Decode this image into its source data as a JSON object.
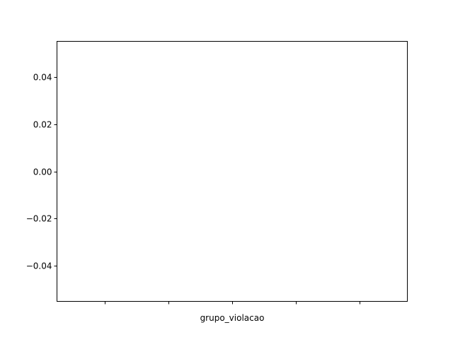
{
  "chart_data": {
    "type": "bar",
    "title": "",
    "xlabel": "grupo_violacao",
    "ylabel": "",
    "categories": [
      "",
      "",
      "",
      "",
      ""
    ],
    "series": [],
    "ylim": [
      -0.055,
      0.055
    ],
    "yticks": [
      -0.04,
      -0.02,
      0.0,
      0.02,
      0.04
    ],
    "ytick_labels": [
      "−0.04",
      "−0.02",
      "0.00",
      "0.02",
      "0.04"
    ],
    "xticks": [
      0,
      1,
      2,
      3,
      4
    ],
    "xlim": [
      -0.75,
      4.75
    ],
    "grid": false,
    "legend": "none"
  }
}
